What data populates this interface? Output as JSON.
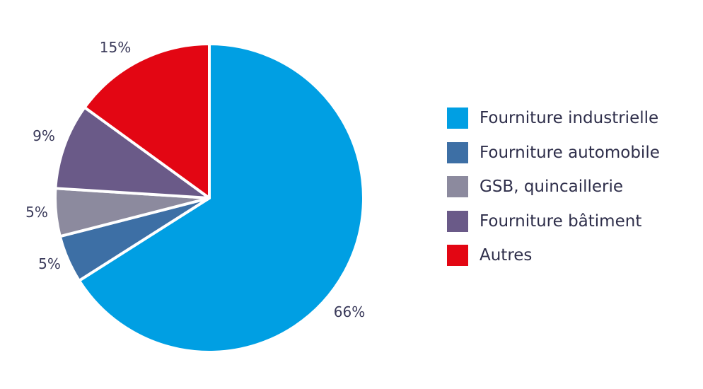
{
  "chart_data": {
    "type": "pie",
    "categories": [
      "Fourniture industrielle",
      "Fourniture automobile",
      "GSB, quincaillerie",
      "Fourniture bâtiment",
      "Autres"
    ],
    "values": [
      66,
      5,
      5,
      9,
      15
    ],
    "labels": [
      "66%",
      "5%",
      "5%",
      "9%",
      "15%"
    ],
    "colors": [
      "#009fe3",
      "#3d6fa5",
      "#8c8a9e",
      "#6a5a88",
      "#e30613"
    ],
    "legend_position": "right",
    "start": "top (12 o'clock), clockwise"
  }
}
